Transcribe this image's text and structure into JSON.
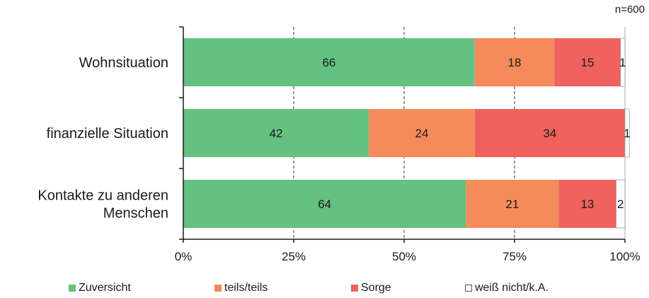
{
  "note": "n=600",
  "chart_data": {
    "type": "bar",
    "orientation": "horizontal",
    "stacked": true,
    "categories": [
      [
        "Wohnsituation"
      ],
      [
        "finanzielle Situation"
      ],
      [
        "Kontakte zu anderen",
        "Menschen"
      ]
    ],
    "series": [
      {
        "name": "Zuversicht",
        "color": "#64c180",
        "values": [
          66,
          42,
          64
        ]
      },
      {
        "name": "teils/teils",
        "color": "#f58b5a",
        "values": [
          18,
          24,
          21
        ]
      },
      {
        "name": "Sorge",
        "color": "#f0625d",
        "values": [
          15,
          34,
          13
        ]
      },
      {
        "name": "weiß nicht/k.A.",
        "color": "#ffffff",
        "values": [
          1,
          1,
          2
        ]
      }
    ],
    "data_labels": [
      [
        "66",
        "42",
        "64"
      ],
      [
        "18",
        "24",
        "21"
      ],
      [
        "15",
        "34",
        "13"
      ],
      [
        "1",
        "1",
        "2"
      ]
    ],
    "xlim": [
      0,
      100
    ],
    "xticks": [
      "0%",
      "25%",
      "50%",
      "75%",
      "100%"
    ],
    "grid": "vertical dashed at 25%, 50%, 75%",
    "legend_position": "bottom"
  }
}
